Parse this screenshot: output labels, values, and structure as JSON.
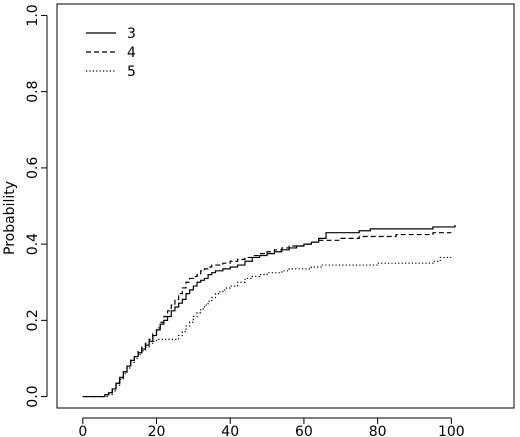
{
  "chart_data": {
    "type": "line",
    "title": "",
    "xlabel": "",
    "ylabel": "Probability",
    "xlim": [
      -7,
      117
    ],
    "ylim": [
      -0.03,
      1.03
    ],
    "x_ticks": [
      0,
      20,
      40,
      60,
      80,
      100
    ],
    "x_tick_labels": [
      "0",
      "20",
      "40",
      "60",
      "80",
      "100"
    ],
    "y_ticks": [
      0.0,
      0.2,
      0.4,
      0.6,
      0.8,
      1.0
    ],
    "y_tick_labels": [
      "0.0",
      "0.2",
      "0.4",
      "0.6",
      "0.8",
      "1.0"
    ],
    "grid": false,
    "legend_position": "top-left",
    "series": [
      {
        "name": "3",
        "line_style": "solid",
        "color": "#000000",
        "x": [
          0,
          5,
          6,
          7,
          8,
          9,
          10,
          11,
          12,
          13,
          14,
          15,
          16,
          17,
          18,
          19,
          20,
          21,
          22,
          23,
          24,
          25,
          26,
          27,
          28,
          29,
          30,
          31,
          32,
          33,
          34,
          35,
          36,
          38,
          40,
          42,
          44,
          46,
          48,
          50,
          52,
          54,
          56,
          58,
          60,
          62,
          64,
          66,
          70,
          75,
          78,
          85,
          90,
          95,
          100,
          101
        ],
        "y": [
          0.0,
          0.0,
          0.005,
          0.01,
          0.02,
          0.035,
          0.05,
          0.065,
          0.08,
          0.095,
          0.105,
          0.115,
          0.125,
          0.135,
          0.145,
          0.16,
          0.175,
          0.19,
          0.2,
          0.21,
          0.225,
          0.235,
          0.245,
          0.255,
          0.27,
          0.28,
          0.29,
          0.3,
          0.305,
          0.31,
          0.32,
          0.325,
          0.33,
          0.335,
          0.34,
          0.345,
          0.355,
          0.365,
          0.37,
          0.375,
          0.38,
          0.385,
          0.39,
          0.395,
          0.4,
          0.405,
          0.415,
          0.43,
          0.43,
          0.435,
          0.44,
          0.44,
          0.44,
          0.445,
          0.445,
          0.45
        ]
      },
      {
        "name": "4",
        "line_style": "dashed",
        "color": "#000000",
        "x": [
          0,
          5,
          6,
          7,
          8,
          9,
          10,
          11,
          12,
          13,
          14,
          15,
          16,
          17,
          18,
          19,
          20,
          21,
          22,
          23,
          24,
          25,
          26,
          27,
          28,
          29,
          30,
          31,
          32,
          33,
          34,
          35,
          36,
          38,
          40,
          42,
          44,
          46,
          48,
          50,
          52,
          54,
          56,
          58,
          60,
          62,
          64,
          66,
          70,
          75,
          80,
          85,
          90,
          95,
          100
        ],
        "y": [
          0.0,
          0.0,
          0.005,
          0.01,
          0.02,
          0.035,
          0.05,
          0.065,
          0.08,
          0.095,
          0.105,
          0.12,
          0.13,
          0.14,
          0.15,
          0.165,
          0.18,
          0.195,
          0.21,
          0.225,
          0.24,
          0.255,
          0.27,
          0.285,
          0.3,
          0.31,
          0.315,
          0.32,
          0.33,
          0.335,
          0.34,
          0.345,
          0.345,
          0.35,
          0.355,
          0.36,
          0.365,
          0.37,
          0.375,
          0.38,
          0.385,
          0.39,
          0.395,
          0.395,
          0.4,
          0.405,
          0.41,
          0.41,
          0.415,
          0.42,
          0.42,
          0.425,
          0.425,
          0.43,
          0.43
        ]
      },
      {
        "name": "5",
        "line_style": "dotted",
        "color": "#000000",
        "x": [
          0,
          6,
          7,
          8,
          9,
          10,
          11,
          12,
          13,
          14,
          15,
          16,
          17,
          18,
          19,
          20,
          22,
          24,
          26,
          27,
          28,
          29,
          30,
          31,
          32,
          33,
          34,
          35,
          36,
          37,
          38,
          39,
          40,
          42,
          44,
          46,
          48,
          50,
          52,
          54,
          56,
          58,
          60,
          62,
          65,
          70,
          75,
          80,
          90,
          95,
          97,
          100
        ],
        "y": [
          0.0,
          0.0,
          0.005,
          0.015,
          0.03,
          0.045,
          0.06,
          0.075,
          0.09,
          0.1,
          0.11,
          0.12,
          0.13,
          0.14,
          0.145,
          0.15,
          0.15,
          0.15,
          0.16,
          0.17,
          0.185,
          0.195,
          0.21,
          0.22,
          0.23,
          0.24,
          0.25,
          0.26,
          0.27,
          0.275,
          0.28,
          0.285,
          0.29,
          0.3,
          0.31,
          0.315,
          0.32,
          0.325,
          0.325,
          0.33,
          0.335,
          0.335,
          0.335,
          0.34,
          0.345,
          0.345,
          0.345,
          0.35,
          0.35,
          0.355,
          0.365,
          0.365
        ]
      }
    ]
  }
}
